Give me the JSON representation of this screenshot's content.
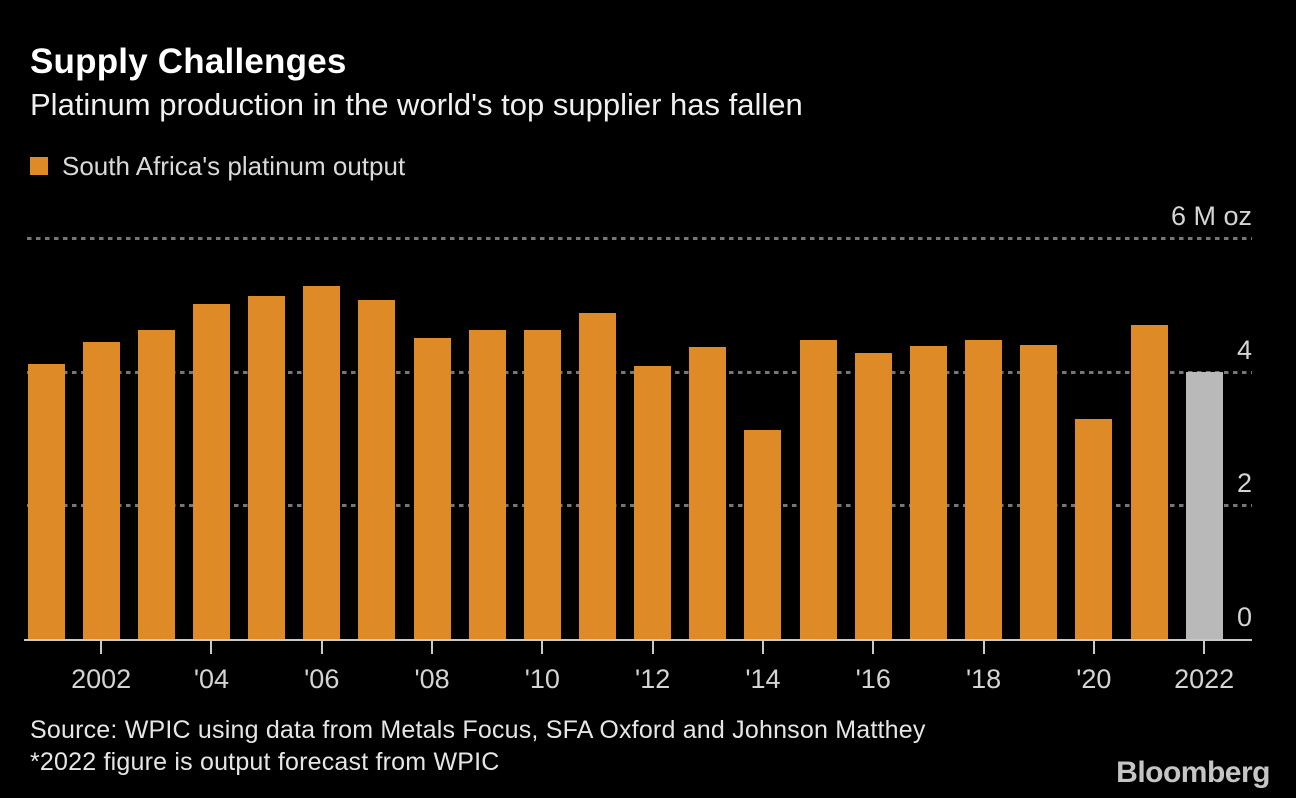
{
  "header": {
    "title": "Supply Challenges",
    "subtitle": "Platinum production in the world's top supplier has fallen"
  },
  "legend": {
    "label": "South Africa's platinum output",
    "swatch_color": "#de8a27"
  },
  "chart_data": {
    "type": "bar",
    "title": "Supply Challenges",
    "subtitle": "Platinum production in the world's top supplier has fallen",
    "series_name": "South Africa's platinum output",
    "categories": [
      2001,
      2002,
      2003,
      2004,
      2005,
      2006,
      2007,
      2008,
      2009,
      2010,
      2011,
      2012,
      2013,
      2014,
      2015,
      2016,
      2017,
      2018,
      2019,
      2020,
      2021,
      2022
    ],
    "values": [
      4.12,
      4.45,
      4.63,
      5.02,
      5.14,
      5.29,
      5.08,
      4.5,
      4.63,
      4.63,
      4.88,
      4.09,
      4.37,
      3.13,
      4.48,
      4.28,
      4.39,
      4.48,
      4.4,
      3.3,
      4.7,
      4.0
    ],
    "unit": "M oz",
    "ylim": [
      0,
      6
    ],
    "y_ticks": [
      {
        "label": "6 M oz",
        "value": 6
      },
      {
        "label": "4",
        "value": 4
      },
      {
        "label": "2",
        "value": 2
      },
      {
        "label": "0",
        "value": 0
      }
    ],
    "y_gridlines": [
      6,
      4,
      2
    ],
    "x_ticks": [
      {
        "label": "2002",
        "year": 2002
      },
      {
        "label": "'04",
        "year": 2004
      },
      {
        "label": "'06",
        "year": 2006
      },
      {
        "label": "'08",
        "year": 2008
      },
      {
        "label": "'10",
        "year": 2010
      },
      {
        "label": "'12",
        "year": 2012
      },
      {
        "label": "'14",
        "year": 2014
      },
      {
        "label": "'16",
        "year": 2016
      },
      {
        "label": "'18",
        "year": 2018
      },
      {
        "label": "'20",
        "year": 2020
      },
      {
        "label": "2022",
        "year": 2022
      }
    ],
    "forecast_year": 2022,
    "colors": {
      "bar": "#de8a27",
      "forecast_bar": "#b9b9b9",
      "gridline": "#767676",
      "axis_line": "#c9c9c9",
      "background": "#000000"
    },
    "legend_position": "top-left",
    "grid": "dashed horizontal"
  },
  "footer": {
    "source_line1": "Source: WPIC using data from Metals Focus, SFA Oxford and Johnson Matthey",
    "source_line2": "*2022 figure is output forecast from WPIC",
    "brand": "Bloomberg"
  }
}
